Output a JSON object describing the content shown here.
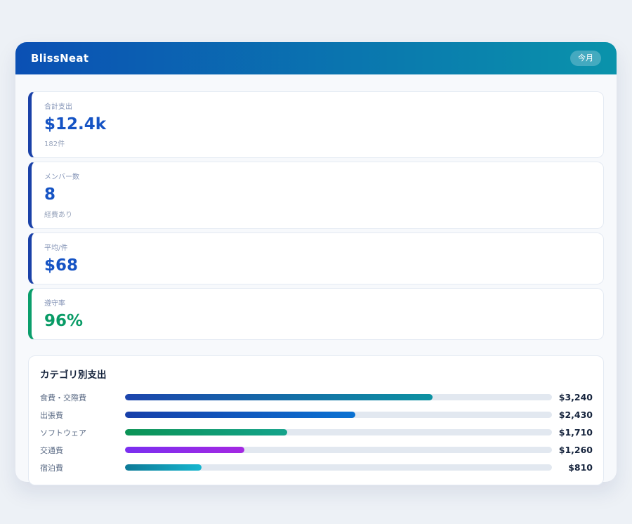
{
  "header": {
    "title": "BlissNeat",
    "period_badge": "今月",
    "gradient_from": "#0b50b4",
    "gradient_to": "#0a93ab"
  },
  "stats": [
    {
      "label": "合計支出",
      "value": "$12.4k",
      "sub": "182件",
      "accent_color": "#1a41a8",
      "value_color": "#1553c4"
    },
    {
      "label": "メンバー数",
      "value": "8",
      "sub": "経費あり",
      "accent_color": "#1a41a8",
      "value_color": "#1553c4"
    },
    {
      "label": "平均/件",
      "value": "$68",
      "sub": "",
      "accent_color": "#1a41a8",
      "value_color": "#1553c4"
    },
    {
      "label": "遵守率",
      "value": "96%",
      "sub": "",
      "accent_color": "#0a9e6b",
      "value_color": "#089b66"
    }
  ],
  "categories": {
    "title": "カテゴリ別支出",
    "track_color": "#e2e8f0",
    "rows": [
      {
        "label": "食費・交際費",
        "value": "$3,240",
        "amount": 3240,
        "percent": 72,
        "color_from": "#1c45ad",
        "color_to": "#0d92a2"
      },
      {
        "label": "出張費",
        "value": "$2,430",
        "amount": 2430,
        "percent": 54,
        "color_from": "#173fa9",
        "color_to": "#0b72d2"
      },
      {
        "label": "ソフトウェア",
        "value": "$1,710",
        "amount": 1710,
        "percent": 38,
        "color_from": "#0b9355",
        "color_to": "#14a38b"
      },
      {
        "label": "交通費",
        "value": "$1,260",
        "amount": 1260,
        "percent": 28,
        "color_from": "#7a2ff0",
        "color_to": "#a428e2"
      },
      {
        "label": "宿泊費",
        "value": "$810",
        "amount": 810,
        "percent": 18,
        "color_from": "#0e7a97",
        "color_to": "#16b6cf"
      }
    ]
  },
  "chart_data": {
    "type": "bar",
    "orientation": "horizontal",
    "title": "カテゴリ別支出",
    "categories": [
      "食費・交際費",
      "出張費",
      "ソフトウェア",
      "交通費",
      "宿泊費"
    ],
    "values": [
      3240,
      2430,
      1710,
      1260,
      810
    ],
    "value_labels": [
      "$3,240",
      "$2,430",
      "$1,710",
      "$1,260",
      "$810"
    ],
    "xlim": [
      0,
      4500
    ],
    "grid": false,
    "legend": false
  }
}
